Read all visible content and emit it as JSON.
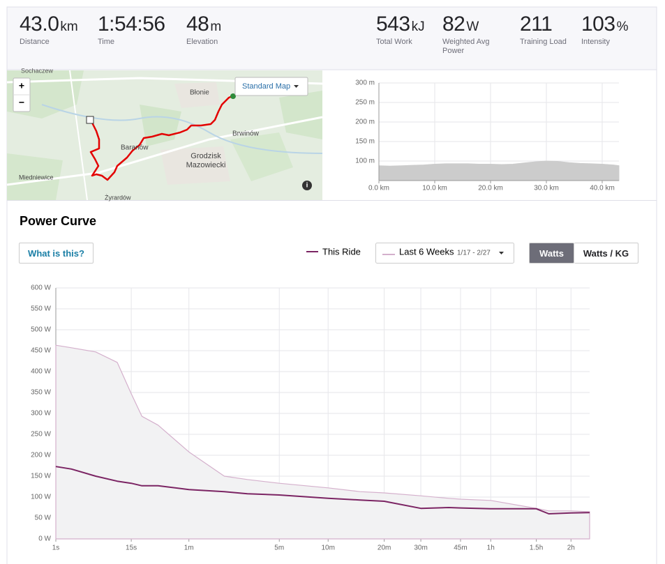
{
  "stats": [
    {
      "value": "43.0",
      "unit": "km",
      "label": "Distance"
    },
    {
      "value": "1:54:56",
      "label": "Time"
    },
    {
      "value": "48",
      "unit": "m",
      "label": "Elevation"
    },
    {
      "value": "543",
      "unit": "kJ",
      "label": "Total Work"
    },
    {
      "value": "82",
      "unit": "W",
      "label": "Weighted Avg Power"
    },
    {
      "value": "211",
      "label": "Training Load"
    },
    {
      "value": "103",
      "unit": "%",
      "label": "Intensity"
    }
  ],
  "map": {
    "button": "Standard Map",
    "zoom_in": "+",
    "zoom_out": "−",
    "labels": [
      "Sochaczew",
      "Błonie",
      "Brwinów",
      "Baranów",
      "Grodzisk",
      "Mazowiecki",
      "Miedniewice",
      "Żyrardów"
    ]
  },
  "power_ui": {
    "help_button": "What is this?",
    "range_dates": "1/17 - 2/27",
    "unit_toggle": [
      "Watts",
      "Watts / KG"
    ],
    "active_unit": 0
  },
  "chart_data": [
    {
      "type": "area",
      "x": [
        0,
        2,
        4,
        6,
        8,
        10,
        12,
        14,
        16,
        18,
        20,
        22,
        24,
        26,
        28,
        30,
        32,
        34,
        36,
        38,
        40,
        42,
        43
      ],
      "values": [
        88,
        87,
        88,
        89,
        90,
        92,
        93,
        93,
        93,
        92,
        92,
        91,
        92,
        95,
        98,
        100,
        99,
        96,
        94,
        93,
        92,
        90,
        88
      ],
      "color": "#cccccc",
      "xlim": [
        0,
        43
      ],
      "ylim": [
        50,
        300
      ],
      "xticks": [
        {
          "value": 0,
          "label": "0.0 km"
        },
        {
          "value": 10,
          "label": "10.0 km"
        },
        {
          "value": 20,
          "label": "20.0 km"
        },
        {
          "value": 30,
          "label": "30.0 km"
        },
        {
          "value": 40,
          "label": "40.0 km"
        }
      ],
      "yticks": [
        {
          "value": 100,
          "label": "100 m"
        },
        {
          "value": 150,
          "label": "150 m"
        },
        {
          "value": 200,
          "label": "200 m"
        },
        {
          "value": 250,
          "label": "250 m"
        },
        {
          "value": 300,
          "label": "300 m"
        }
      ],
      "grid": true
    },
    {
      "type": "line",
      "title": "Power Curve",
      "x": [
        1,
        2,
        5,
        10,
        15,
        20,
        30,
        60,
        120,
        180,
        300,
        600,
        900,
        1200,
        1800,
        2400,
        2700,
        3600,
        5400,
        6000,
        7200,
        8350
      ],
      "series": [
        {
          "name": "This Ride",
          "color": "#7b2463",
          "values": [
            173,
            167,
            150,
            138,
            133,
            127,
            127,
            118,
            113,
            108,
            105,
            97,
            93,
            90,
            73,
            75,
            74,
            72,
            72,
            60,
            62,
            63
          ]
        },
        {
          "name": "Last 6 Weeks",
          "color": "#d4b0cc",
          "fill": "#f2f2f3",
          "values": [
            463,
            457,
            447,
            422,
            347,
            293,
            272,
            208,
            150,
            142,
            133,
            122,
            113,
            110,
            103,
            97,
            95,
            92,
            73,
            67,
            67,
            65
          ]
        }
      ],
      "xscale": "power",
      "xscale_exponent": 0.2,
      "xlim": [
        1,
        8350
      ],
      "ylim": [
        0,
        600
      ],
      "xticks": [
        {
          "value": 1,
          "label": "1s"
        },
        {
          "value": 15,
          "label": "15s"
        },
        {
          "value": 60,
          "label": "1m"
        },
        {
          "value": 300,
          "label": "5m"
        },
        {
          "value": 600,
          "label": "10m"
        },
        {
          "value": 1200,
          "label": "20m"
        },
        {
          "value": 1800,
          "label": "30m"
        },
        {
          "value": 2700,
          "label": "45m"
        },
        {
          "value": 3600,
          "label": "1h"
        },
        {
          "value": 5400,
          "label": "1.5h"
        },
        {
          "value": 7200,
          "label": "2h"
        }
      ],
      "yticks": [
        {
          "value": 0,
          "label": "0 W"
        },
        {
          "value": 50,
          "label": "50 W"
        },
        {
          "value": 100,
          "label": "100 W"
        },
        {
          "value": 150,
          "label": "150 W"
        },
        {
          "value": 200,
          "label": "200 W"
        },
        {
          "value": 250,
          "label": "250 W"
        },
        {
          "value": 300,
          "label": "300 W"
        },
        {
          "value": 350,
          "label": "350 W"
        },
        {
          "value": 400,
          "label": "400 W"
        },
        {
          "value": 450,
          "label": "450 W"
        },
        {
          "value": 500,
          "label": "500 W"
        },
        {
          "value": 550,
          "label": "550 W"
        },
        {
          "value": 600,
          "label": "600 W"
        }
      ],
      "grid": true
    }
  ]
}
